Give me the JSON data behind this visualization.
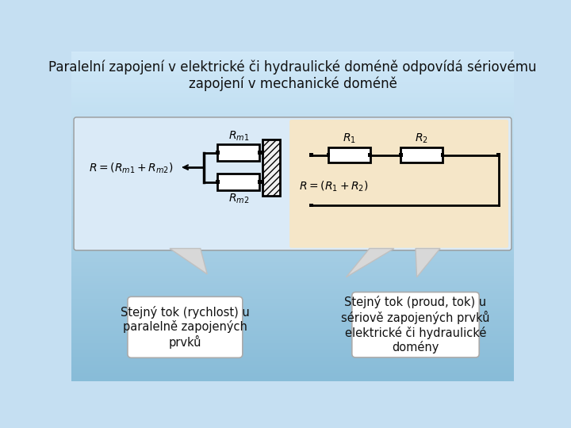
{
  "title": "Paralelní zapojení v elektrické či hydraulické doméně odpovídá sériovému\nzapojení v mechanické doméně",
  "title_fontsize": 12,
  "bg_top_color": "#c5dff2",
  "bg_bot_color": "#a8cce4",
  "left_panel_color": "#daeaf7",
  "right_panel_color": "#f5e6c8",
  "panel_edge_color": "#bbbbbb",
  "label_left": "Stejný tok (rychlost) u\nparalelně zapojených\nprvků",
  "label_right": "Stejný tok (proud, tok) u\nsériově zapojených prvků\nelektrické či hydraulické\ndomény",
  "callout_color": "#e8e8e8",
  "callout_edge": "#bbbbbb",
  "box_color": "#ffffff",
  "box_edge": "#aaaaaa"
}
